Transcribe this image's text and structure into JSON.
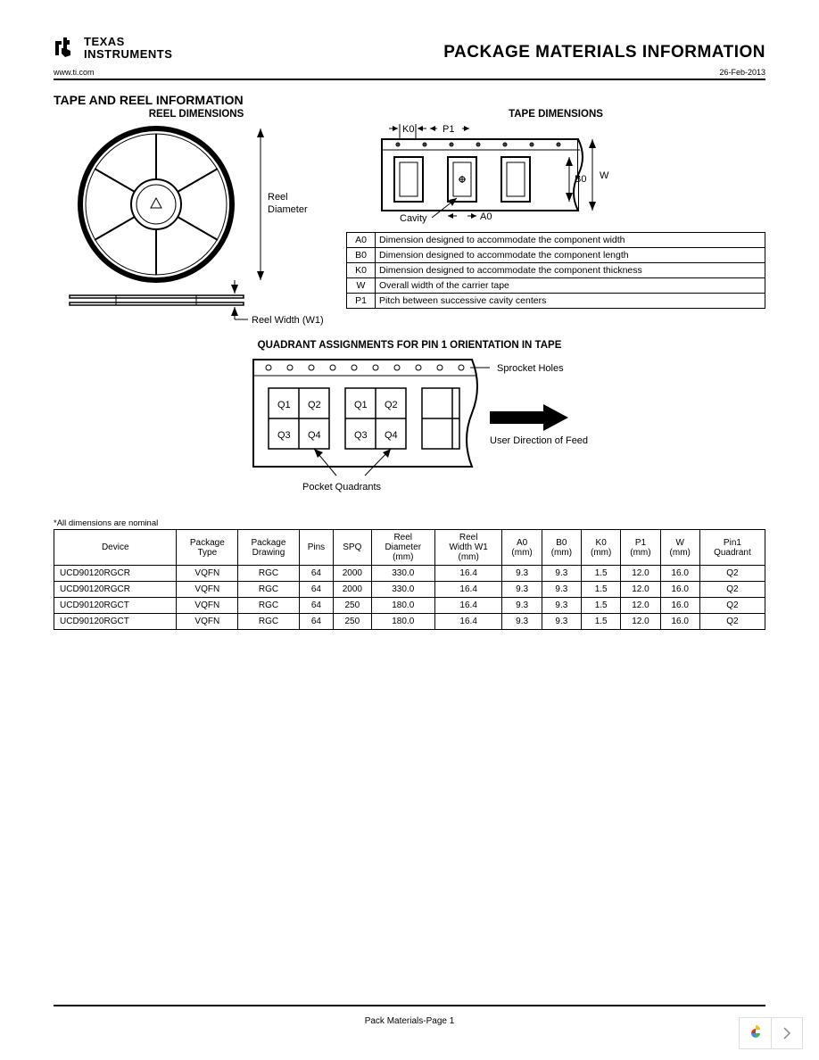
{
  "header": {
    "company_line1": "TEXAS",
    "company_line2": "INSTRUMENTS",
    "page_title": "PACKAGE MATERIALS INFORMATION",
    "website": "www.ti.com",
    "date": "26-Feb-2013"
  },
  "section": {
    "title": "TAPE AND REEL INFORMATION",
    "reel_title": "REEL DIMENSIONS",
    "tape_title": "TAPE DIMENSIONS",
    "quadrant_title": "QUADRANT ASSIGNMENTS FOR PIN 1 ORIENTATION IN TAPE",
    "reel_diameter_label": "Reel\nDiameter",
    "reel_width_label": "Reel Width (W1)",
    "cavity_label": "Cavity",
    "sprocket_label": "Sprocket Holes",
    "feed_label": "User Direction of Feed",
    "pocket_label": "Pocket Quadrants",
    "tape_labels": {
      "K0": "K0",
      "P1": "P1",
      "A0": "A0",
      "B0": "B0",
      "W": "W"
    },
    "quad_labels": {
      "Q1": "Q1",
      "Q2": "Q2",
      "Q3": "Q3",
      "Q4": "Q4"
    }
  },
  "dim_table": {
    "rows": [
      {
        "code": "A0",
        "desc": "Dimension designed to accommodate the component width"
      },
      {
        "code": "B0",
        "desc": "Dimension designed to accommodate the component length"
      },
      {
        "code": "K0",
        "desc": "Dimension designed to accommodate the component thickness"
      },
      {
        "code": "W",
        "desc": "Overall width of the carrier tape"
      },
      {
        "code": "P1",
        "desc": "Pitch between successive cavity centers"
      }
    ]
  },
  "data_table": {
    "note": "*All dimensions are nominal",
    "headers": [
      "Device",
      "Package Type",
      "Package Drawing",
      "Pins",
      "SPQ",
      "Reel Diameter (mm)",
      "Reel Width W1 (mm)",
      "A0 (mm)",
      "B0 (mm)",
      "K0 (mm)",
      "P1 (mm)",
      "W (mm)",
      "Pin1 Quadrant"
    ],
    "rows": [
      [
        "UCD90120RGCR",
        "VQFN",
        "RGC",
        "64",
        "2000",
        "330.0",
        "16.4",
        "9.3",
        "9.3",
        "1.5",
        "12.0",
        "16.0",
        "Q2"
      ],
      [
        "UCD90120RGCR",
        "VQFN",
        "RGC",
        "64",
        "2000",
        "330.0",
        "16.4",
        "9.3",
        "9.3",
        "1.5",
        "12.0",
        "16.0",
        "Q2"
      ],
      [
        "UCD90120RGCT",
        "VQFN",
        "RGC",
        "64",
        "250",
        "180.0",
        "16.4",
        "9.3",
        "9.3",
        "1.5",
        "12.0",
        "16.0",
        "Q2"
      ],
      [
        "UCD90120RGCT",
        "VQFN",
        "RGC",
        "64",
        "250",
        "180.0",
        "16.4",
        "9.3",
        "9.3",
        "1.5",
        "12.0",
        "16.0",
        "Q2"
      ]
    ]
  },
  "footer": {
    "text": "Pack Materials-Page 1"
  }
}
